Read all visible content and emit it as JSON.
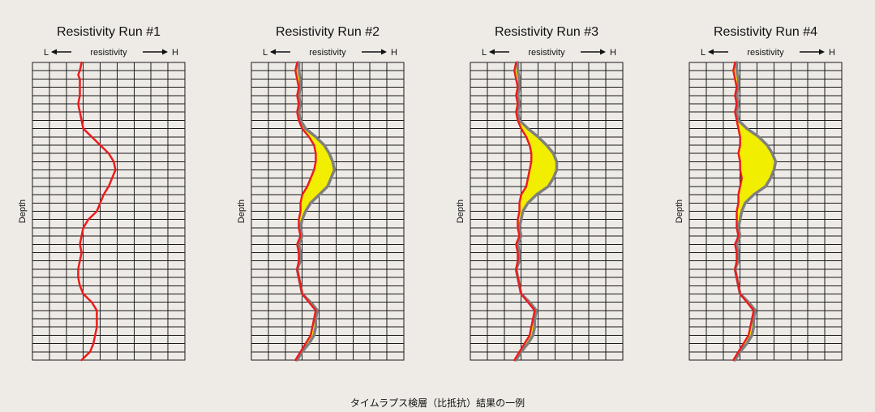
{
  "caption": "タイムラプス検層（比抵抗）結果の一例",
  "colors": {
    "current": "#ee1c1c",
    "baseline": "#808080",
    "fill": "#f2ee00",
    "grid": "#1a1a1a",
    "background": "#eeebe7"
  },
  "chart_data": [
    {
      "type": "line",
      "title": "Resistivity  Run #1",
      "xlabel_left": "L",
      "xlabel": "resistivity",
      "xlabel_right": "H",
      "ylabel": "Depth",
      "grid": true,
      "xlim": [
        0,
        9
      ],
      "ylim": [
        0,
        36
      ],
      "highlight": false,
      "series": [
        {
          "role": "current",
          "depth": [
            0,
            1,
            1.5,
            2,
            3,
            4,
            5,
            6,
            7,
            8,
            9,
            10,
            11,
            12,
            13,
            14,
            15,
            16,
            17,
            18,
            19,
            20,
            21,
            22,
            23,
            24,
            25,
            26,
            27,
            28,
            29,
            30,
            31,
            32,
            33,
            34,
            35,
            36
          ],
          "values": [
            2.9,
            2.8,
            2.7,
            2.8,
            2.8,
            2.8,
            2.7,
            2.8,
            2.9,
            3.0,
            3.5,
            4.0,
            4.5,
            4.8,
            4.9,
            4.7,
            4.5,
            4.2,
            4.0,
            3.8,
            3.3,
            3.0,
            2.9,
            2.8,
            2.9,
            2.8,
            2.7,
            2.7,
            2.8,
            3.0,
            3.5,
            3.8,
            3.8,
            3.8,
            3.7,
            3.6,
            3.4,
            2.9
          ]
        }
      ]
    },
    {
      "type": "line",
      "title": "Resistivity  Run #2",
      "xlabel_left": "L",
      "xlabel": "resistivity",
      "xlabel_right": "H",
      "ylabel": "Depth",
      "grid": true,
      "xlim": [
        0,
        9
      ],
      "ylim": [
        0,
        36
      ],
      "highlight": true,
      "series": [
        {
          "role": "baseline",
          "depth": [
            0,
            1,
            2,
            3,
            4,
            5,
            6,
            7,
            8,
            9,
            10,
            11,
            12,
            13,
            14,
            15,
            16,
            17,
            18,
            19,
            20,
            21,
            22,
            23,
            24,
            25,
            26,
            27,
            28,
            29,
            30,
            31,
            32,
            33,
            34,
            35,
            36
          ],
          "values": [
            2.8,
            2.8,
            2.9,
            2.9,
            2.8,
            2.9,
            2.8,
            2.9,
            3.2,
            3.8,
            4.3,
            4.6,
            4.8,
            4.9,
            4.7,
            4.5,
            4.0,
            3.5,
            3.2,
            3.0,
            2.9,
            3.0,
            2.8,
            2.9,
            2.9,
            2.7,
            2.8,
            2.9,
            3.0,
            3.5,
            3.9,
            3.8,
            3.8,
            3.7,
            3.4,
            3.0,
            2.7
          ]
        },
        {
          "role": "current",
          "depth": [
            0,
            1,
            2,
            3,
            4,
            5,
            6,
            7,
            8,
            9,
            10,
            11,
            12,
            13,
            14,
            15,
            16,
            17,
            18,
            19,
            20,
            21,
            22,
            23,
            24,
            25,
            26,
            27,
            28,
            29,
            30,
            31,
            32,
            33,
            34,
            35,
            36
          ],
          "values": [
            2.7,
            2.6,
            2.7,
            2.8,
            2.7,
            2.8,
            2.7,
            2.8,
            3.0,
            3.4,
            3.7,
            3.8,
            3.8,
            3.7,
            3.5,
            3.3,
            3.0,
            2.9,
            2.9,
            2.8,
            2.8,
            2.9,
            2.7,
            2.8,
            2.8,
            2.7,
            2.8,
            2.9,
            3.0,
            3.4,
            3.8,
            3.7,
            3.6,
            3.5,
            3.2,
            2.9,
            2.6
          ]
        }
      ]
    },
    {
      "type": "line",
      "title": "Resistivity  Run #3",
      "xlabel_left": "L",
      "xlabel": "resistivity",
      "xlabel_right": "H",
      "ylabel": "Depth",
      "grid": true,
      "xlim": [
        0,
        9
      ],
      "ylim": [
        0,
        36
      ],
      "highlight": true,
      "series": [
        {
          "role": "baseline",
          "depth": [
            0,
            1,
            2,
            3,
            4,
            5,
            6,
            7,
            8,
            9,
            10,
            11,
            12,
            13,
            14,
            15,
            16,
            17,
            18,
            19,
            20,
            21,
            22,
            23,
            24,
            25,
            26,
            27,
            28,
            29,
            30,
            31,
            32,
            33,
            34,
            35,
            36
          ],
          "values": [
            2.8,
            2.8,
            2.9,
            2.9,
            2.8,
            2.9,
            2.8,
            2.9,
            3.4,
            4.0,
            4.5,
            4.9,
            5.1,
            5.1,
            4.9,
            4.6,
            3.9,
            3.4,
            3.1,
            3.0,
            2.9,
            3.0,
            2.8,
            2.9,
            2.9,
            2.7,
            2.8,
            2.9,
            3.0,
            3.5,
            3.9,
            3.8,
            3.8,
            3.7,
            3.4,
            3.0,
            2.7
          ]
        },
        {
          "role": "current",
          "depth": [
            0,
            1,
            2,
            3,
            4,
            5,
            6,
            7,
            8,
            9,
            10,
            11,
            12,
            13,
            14,
            15,
            16,
            17,
            18,
            19,
            20,
            21,
            22,
            23,
            24,
            25,
            26,
            27,
            28,
            29,
            30,
            31,
            32,
            33,
            34,
            35,
            36
          ],
          "values": [
            2.7,
            2.6,
            2.7,
            2.8,
            2.7,
            2.8,
            2.7,
            2.8,
            3.0,
            3.3,
            3.5,
            3.6,
            3.6,
            3.5,
            3.4,
            3.3,
            3.0,
            2.9,
            2.9,
            2.8,
            2.8,
            2.9,
            2.7,
            2.8,
            2.8,
            2.7,
            2.8,
            2.9,
            3.0,
            3.4,
            3.8,
            3.7,
            3.6,
            3.5,
            3.2,
            2.9,
            2.6
          ]
        }
      ]
    },
    {
      "type": "line",
      "title": "Resistivity  Run #4",
      "xlabel_left": "L",
      "xlabel": "resistivity",
      "xlabel_right": "H",
      "ylabel": "Depth",
      "grid": true,
      "xlim": [
        0,
        9
      ],
      "ylim": [
        0,
        36
      ],
      "highlight": true,
      "series": [
        {
          "role": "baseline",
          "depth": [
            0,
            1,
            2,
            3,
            4,
            5,
            6,
            7,
            8,
            9,
            10,
            11,
            12,
            13,
            14,
            15,
            16,
            17,
            18,
            19,
            20,
            21,
            22,
            23,
            24,
            25,
            26,
            27,
            28,
            29,
            30,
            31,
            32,
            33,
            34,
            35,
            36
          ],
          "values": [
            2.8,
            2.8,
            2.9,
            2.9,
            2.8,
            2.9,
            2.8,
            2.9,
            3.4,
            4.1,
            4.6,
            4.9,
            5.1,
            5.0,
            4.8,
            4.5,
            3.8,
            3.3,
            3.1,
            3.0,
            2.9,
            3.0,
            2.8,
            2.9,
            2.9,
            2.7,
            2.8,
            2.9,
            3.0,
            3.5,
            3.9,
            3.8,
            3.8,
            3.7,
            3.4,
            3.0,
            2.7
          ]
        },
        {
          "role": "current",
          "depth": [
            0,
            1,
            2,
            3,
            4,
            5,
            6,
            7,
            8,
            9,
            10,
            11,
            12,
            13,
            14,
            15,
            16,
            17,
            18,
            19,
            20,
            21,
            22,
            23,
            24,
            25,
            26,
            27,
            28,
            29,
            30,
            31,
            32,
            33,
            34,
            35,
            36
          ],
          "values": [
            2.7,
            2.6,
            2.7,
            2.8,
            2.7,
            2.8,
            2.7,
            2.8,
            2.9,
            3.0,
            3.0,
            2.9,
            3.0,
            3.0,
            3.1,
            3.0,
            2.9,
            2.9,
            2.8,
            2.8,
            2.8,
            2.9,
            2.7,
            2.8,
            2.8,
            2.7,
            2.8,
            2.9,
            3.0,
            3.4,
            3.8,
            3.7,
            3.6,
            3.5,
            3.2,
            2.9,
            2.6
          ]
        }
      ]
    }
  ]
}
